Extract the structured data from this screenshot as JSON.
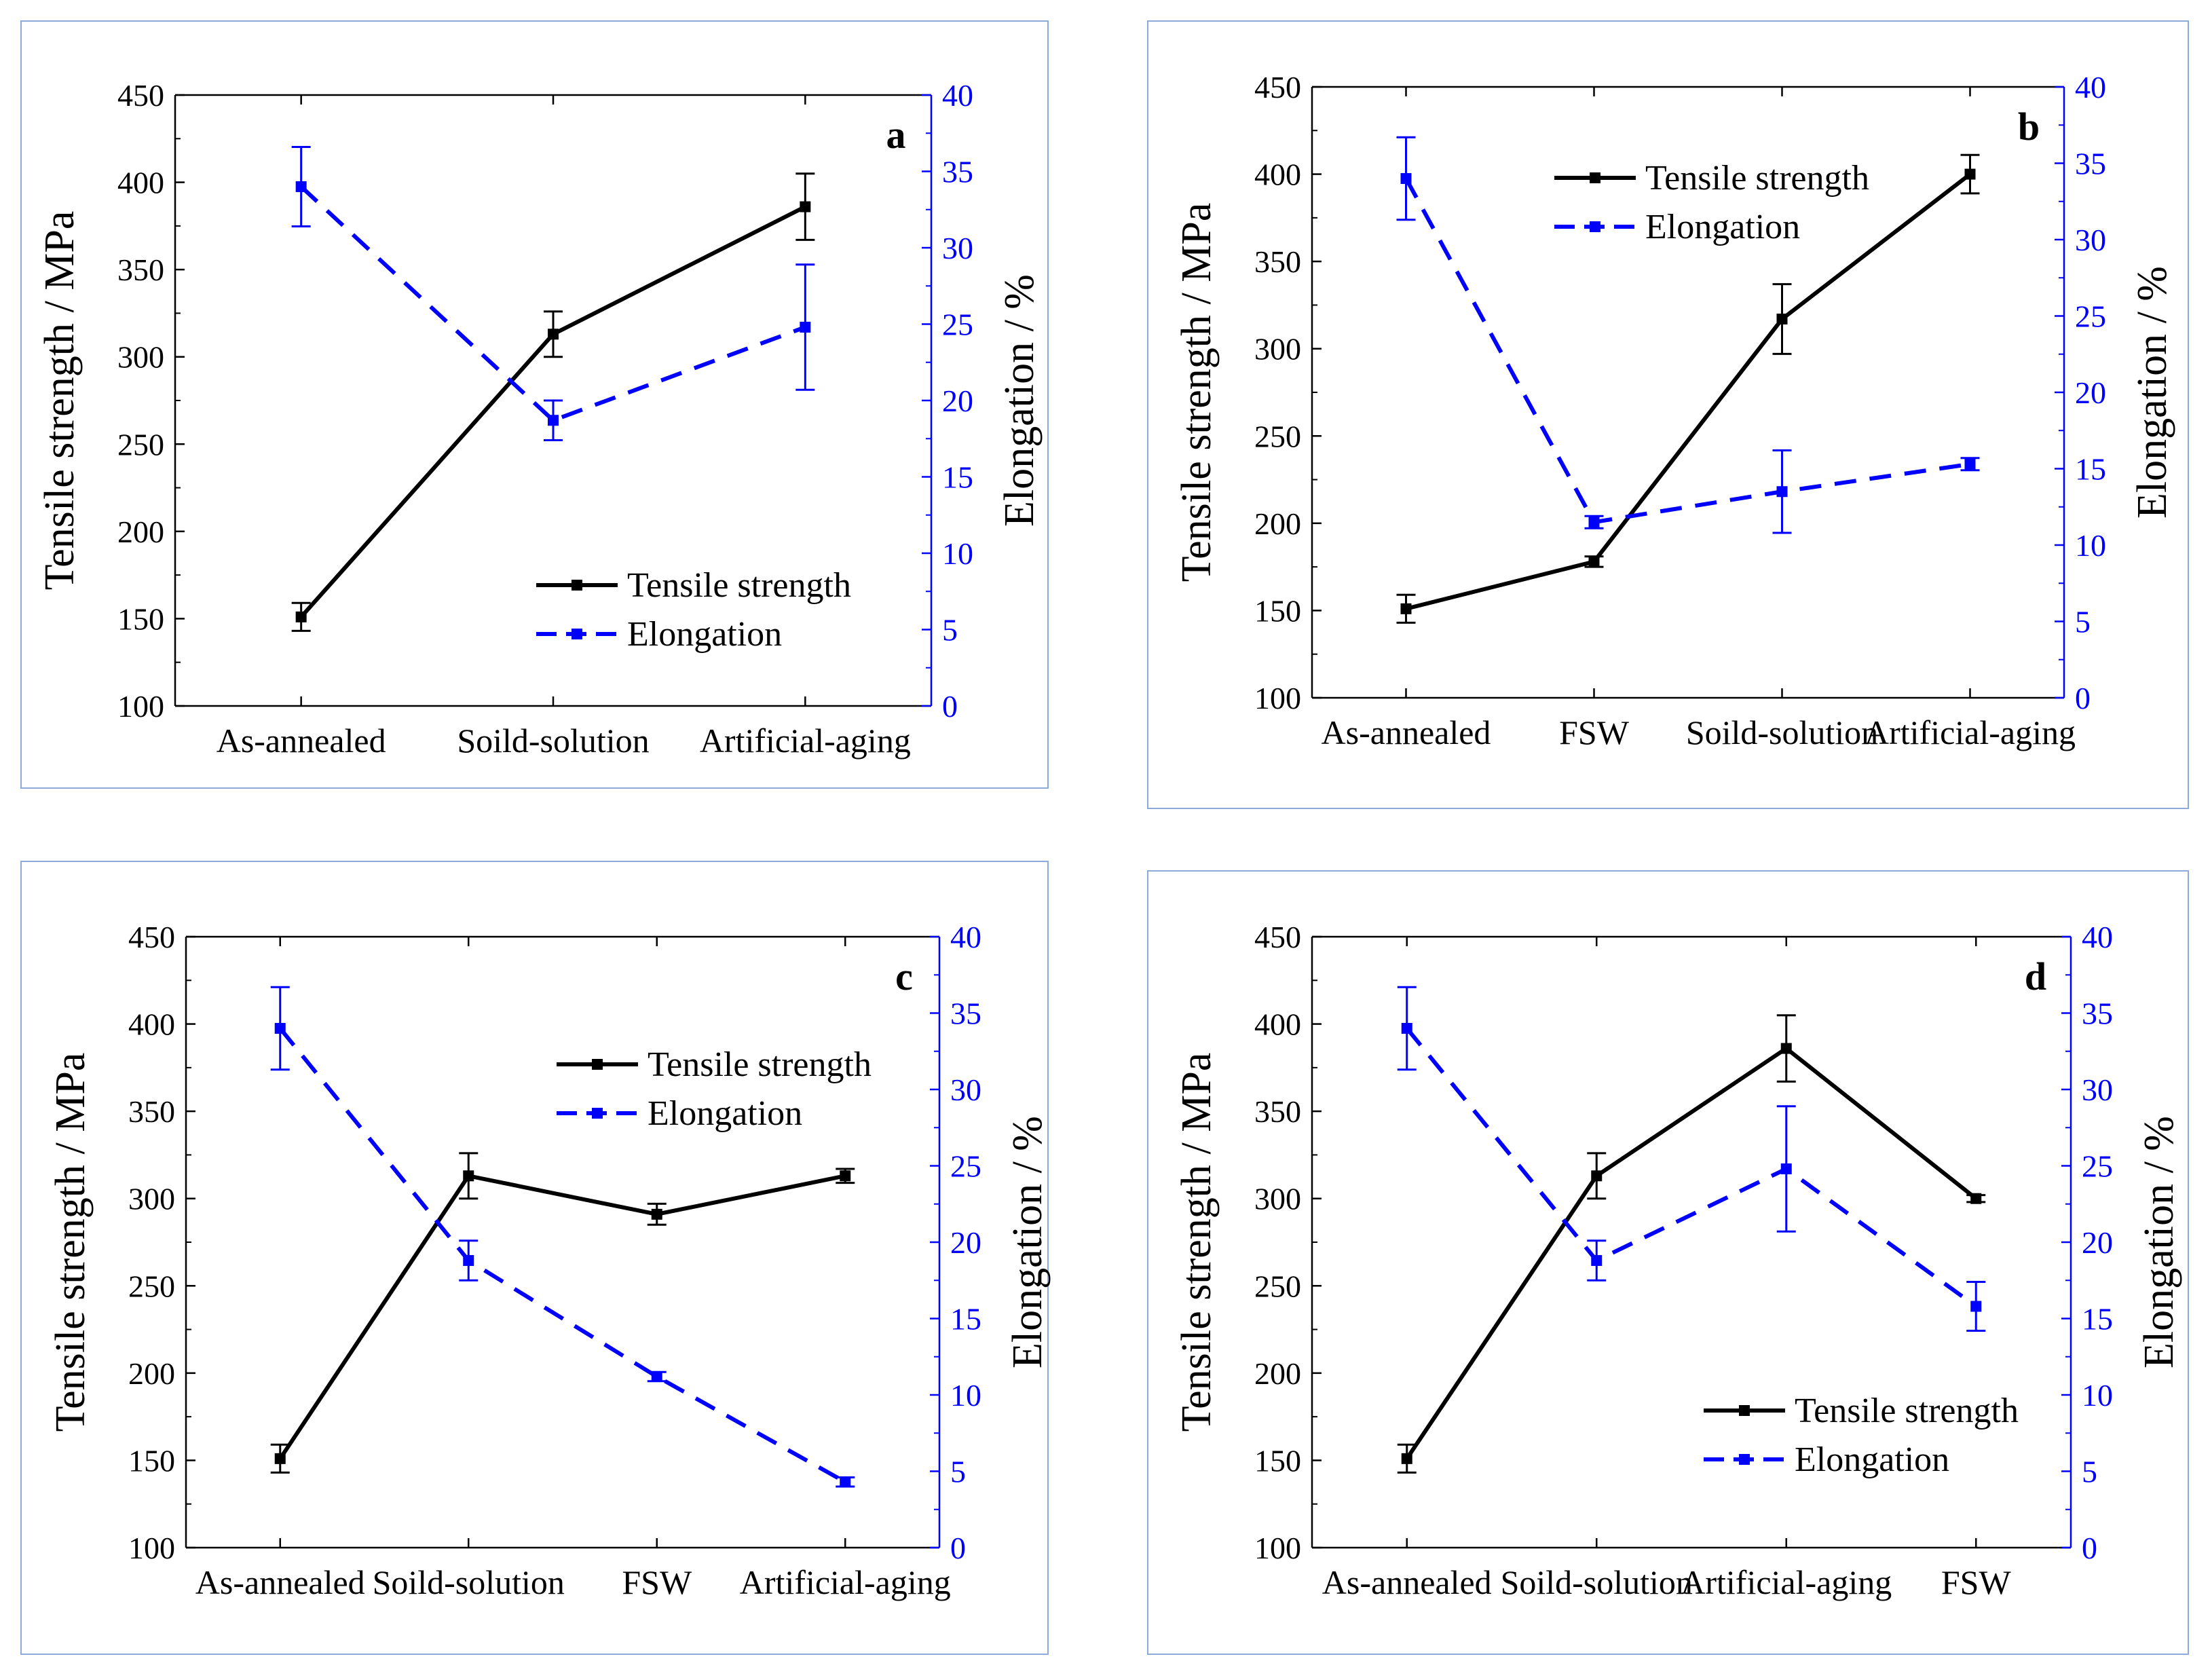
{
  "chart_data": [
    {
      "panel": "a",
      "type": "line",
      "title": "",
      "categories": [
        "As-annealed",
        "Soild-solution",
        "Artificial-aging"
      ],
      "ylabel": "Tensile strength / MPa",
      "y2label": "Elongation / %",
      "ylim": [
        100,
        450
      ],
      "y2lim": [
        0,
        40
      ],
      "yticks": [
        100,
        150,
        200,
        250,
        300,
        350,
        400,
        450
      ],
      "y2ticks": [
        0,
        5,
        10,
        15,
        20,
        25,
        30,
        35,
        40
      ],
      "legend_position": "bottom-right",
      "series": [
        {
          "name": "Tensile strength",
          "axis": "left",
          "color": "#000000",
          "style": "solid",
          "values": [
            151,
            313,
            386
          ],
          "errors": [
            8,
            13,
            19
          ]
        },
        {
          "name": "Elongation",
          "axis": "right",
          "color": "#0000ff",
          "style": "dashed",
          "values": [
            34.0,
            18.7,
            24.8
          ],
          "errors": [
            2.6,
            1.3,
            4.1
          ]
        }
      ]
    },
    {
      "panel": "b",
      "type": "line",
      "title": "",
      "categories": [
        "As-annealed",
        "FSW",
        "Soild-solution",
        "Artificial-aging"
      ],
      "ylabel": "Tensile strength / MPa",
      "y2label": "Elongation / %",
      "ylim": [
        100,
        450
      ],
      "y2lim": [
        0,
        40
      ],
      "yticks": [
        100,
        150,
        200,
        250,
        300,
        350,
        400,
        450
      ],
      "y2ticks": [
        0,
        5,
        10,
        15,
        20,
        25,
        30,
        35,
        40
      ],
      "legend_position": "top-center",
      "series": [
        {
          "name": "Tensile strength",
          "axis": "left",
          "color": "#000000",
          "style": "solid",
          "values": [
            151,
            178,
            317,
            400
          ],
          "errors": [
            8,
            3,
            20,
            11
          ]
        },
        {
          "name": "Elongation",
          "axis": "right",
          "color": "#0000ff",
          "style": "dashed",
          "values": [
            34.0,
            11.5,
            13.5,
            15.3
          ],
          "errors": [
            2.7,
            0.4,
            2.7,
            0.4
          ]
        }
      ]
    },
    {
      "panel": "c",
      "type": "line",
      "title": "",
      "categories": [
        "As-annealed",
        "Soild-solution",
        "FSW",
        "Artificial-aging"
      ],
      "ylabel": "Tensile strength / MPa",
      "y2label": "Elongation / %",
      "ylim": [
        100,
        450
      ],
      "y2lim": [
        0,
        40
      ],
      "yticks": [
        100,
        150,
        200,
        250,
        300,
        350,
        400,
        450
      ],
      "y2ticks": [
        0,
        5,
        10,
        15,
        20,
        25,
        30,
        35,
        40
      ],
      "legend_position": "top-right",
      "series": [
        {
          "name": "Tensile strength",
          "axis": "left",
          "color": "#000000",
          "style": "solid",
          "values": [
            151,
            313,
            291,
            313
          ],
          "errors": [
            8,
            13,
            6,
            4
          ]
        },
        {
          "name": "Elongation",
          "axis": "right",
          "color": "#0000ff",
          "style": "dashed",
          "values": [
            34.0,
            18.8,
            11.2,
            4.3
          ],
          "errors": [
            2.7,
            1.3,
            0.3,
            0.3
          ]
        }
      ]
    },
    {
      "panel": "d",
      "type": "line",
      "title": "",
      "categories": [
        "As-annealed",
        "Soild-solution",
        "Artificial-aging",
        "FSW"
      ],
      "ylabel": "Tensile strength / MPa",
      "y2label": "Elongation / %",
      "ylim": [
        100,
        450
      ],
      "y2lim": [
        0,
        40
      ],
      "yticks": [
        100,
        150,
        200,
        250,
        300,
        350,
        400,
        450
      ],
      "y2ticks": [
        0,
        5,
        10,
        15,
        20,
        25,
        30,
        35,
        40
      ],
      "legend_position": "bottom-right",
      "series": [
        {
          "name": "Tensile strength",
          "axis": "left",
          "color": "#000000",
          "style": "solid",
          "values": [
            151,
            313,
            386,
            300
          ],
          "errors": [
            8,
            13,
            19,
            2
          ]
        },
        {
          "name": "Elongation",
          "axis": "right",
          "color": "#0000ff",
          "style": "dashed",
          "values": [
            34.0,
            18.8,
            24.8,
            15.8
          ],
          "errors": [
            2.7,
            1.3,
            4.1,
            1.6
          ]
        }
      ]
    }
  ]
}
